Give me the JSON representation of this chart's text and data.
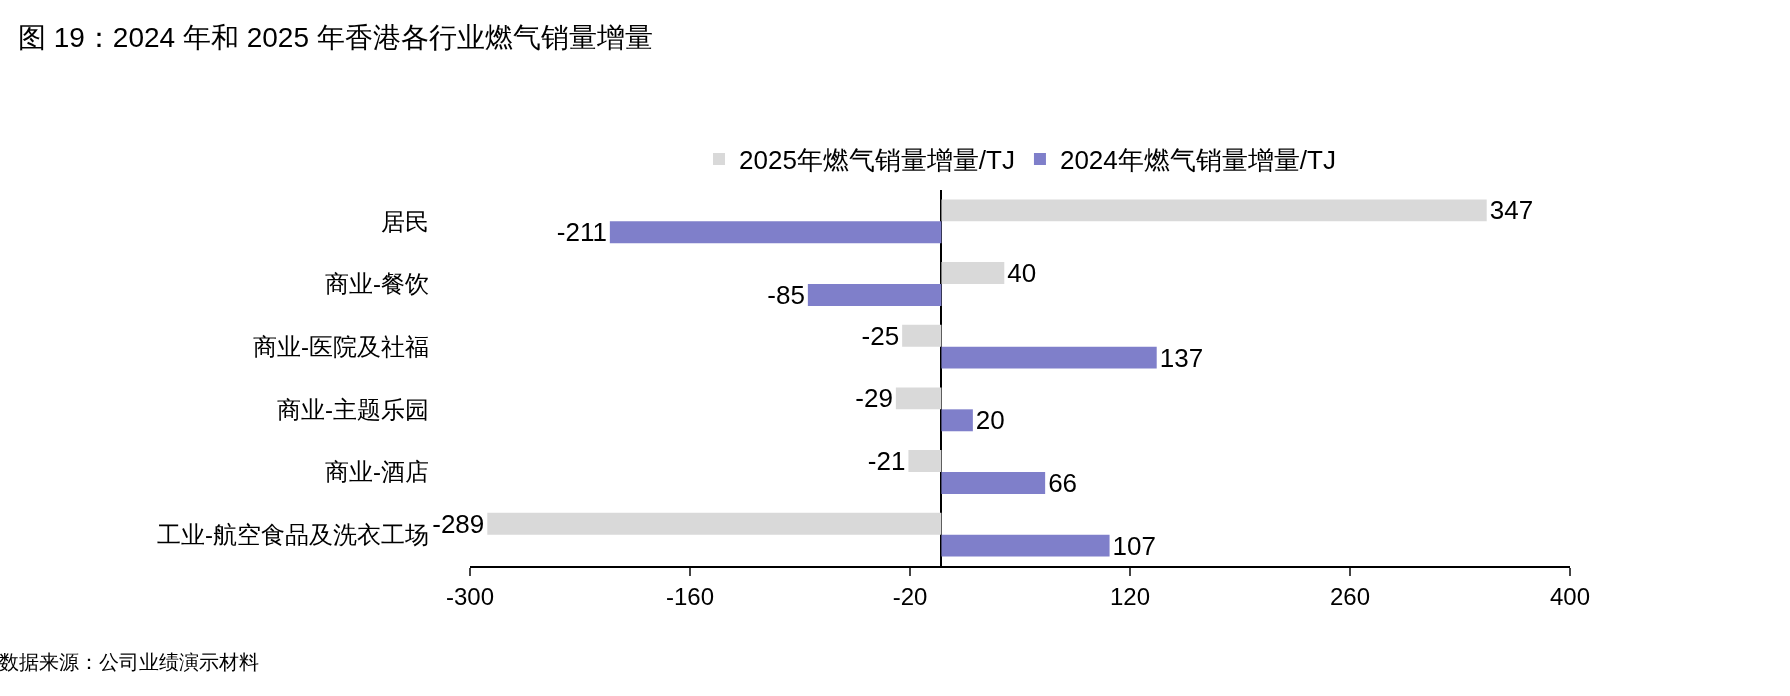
{
  "chart_data": {
    "type": "bar",
    "orientation": "horizontal",
    "title": "图 19：2024 年和 2025 年香港各行业燃气销量增量",
    "categories": [
      "居民",
      "商业-餐饮",
      "商业-医院及社福",
      "商业-主题乐园",
      "商业-酒店",
      "工业-航空食品及洗衣工场"
    ],
    "series": [
      {
        "name": "2025年燃气销量增量/TJ",
        "color": "#d9d9d9",
        "values": [
          347,
          40,
          -25,
          -29,
          -21,
          -289
        ]
      },
      {
        "name": "2024年燃气销量增量/TJ",
        "color": "#7f7fca",
        "values": [
          -211,
          -85,
          137,
          20,
          66,
          107
        ]
      }
    ],
    "xlim": [
      -300,
      400
    ],
    "xticks": [
      -300,
      -160,
      -20,
      120,
      260,
      400
    ],
    "data_labels": true,
    "legend": "top",
    "annotations": [
      "数据来源：公司业绩演示材料"
    ]
  }
}
